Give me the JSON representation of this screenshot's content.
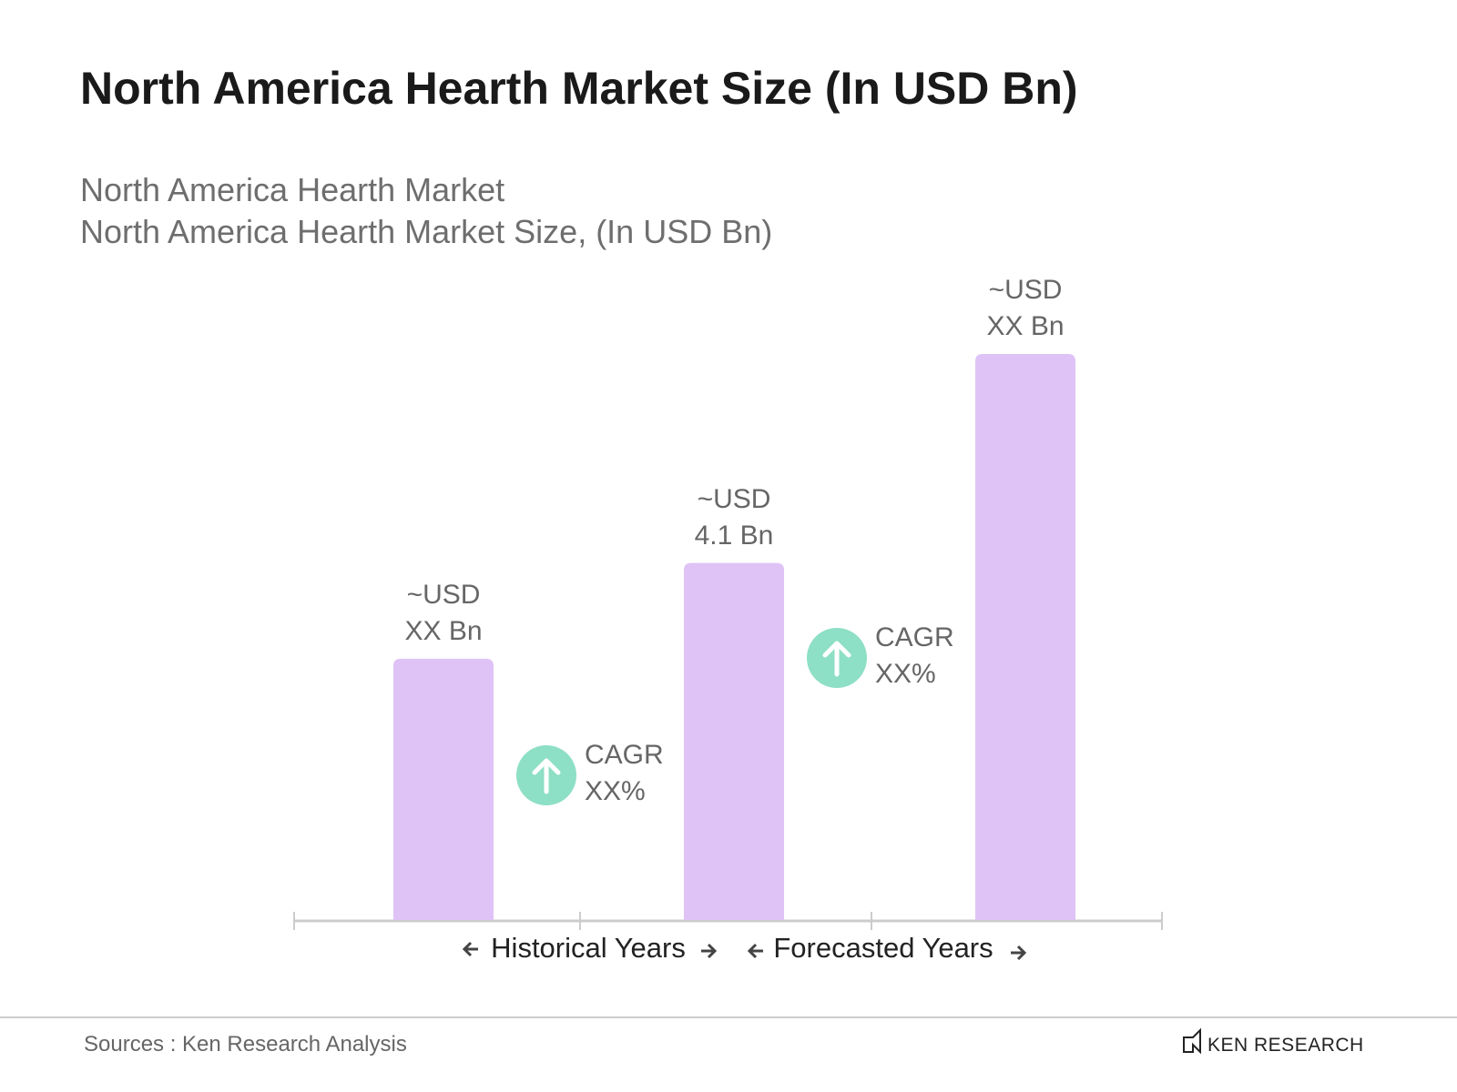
{
  "chart_data": {
    "type": "bar",
    "title": "North America Hearth Market Size (In USD Bn)",
    "subtitle": [
      "North America Hearth Market",
      "North America Hearth Market Size, (In USD Bn)"
    ],
    "categories": [
      null,
      null,
      null
    ],
    "values": [
      3.0,
      4.1,
      6.5
    ],
    "value_labels": [
      "~USD XX Bn",
      "~USD 4.1 Bn",
      "~USD XX Bn"
    ],
    "color": "#dfc3f7",
    "annotations": [
      "CAGR XX%",
      "CAGR XX%"
    ],
    "annotation_color": "#8ddfc5",
    "periods": [
      "Historical Years",
      "Forecasted Years"
    ],
    "source": "Sources : Ken Research Analysis",
    "brand": "KEN RESEARCH"
  }
}
